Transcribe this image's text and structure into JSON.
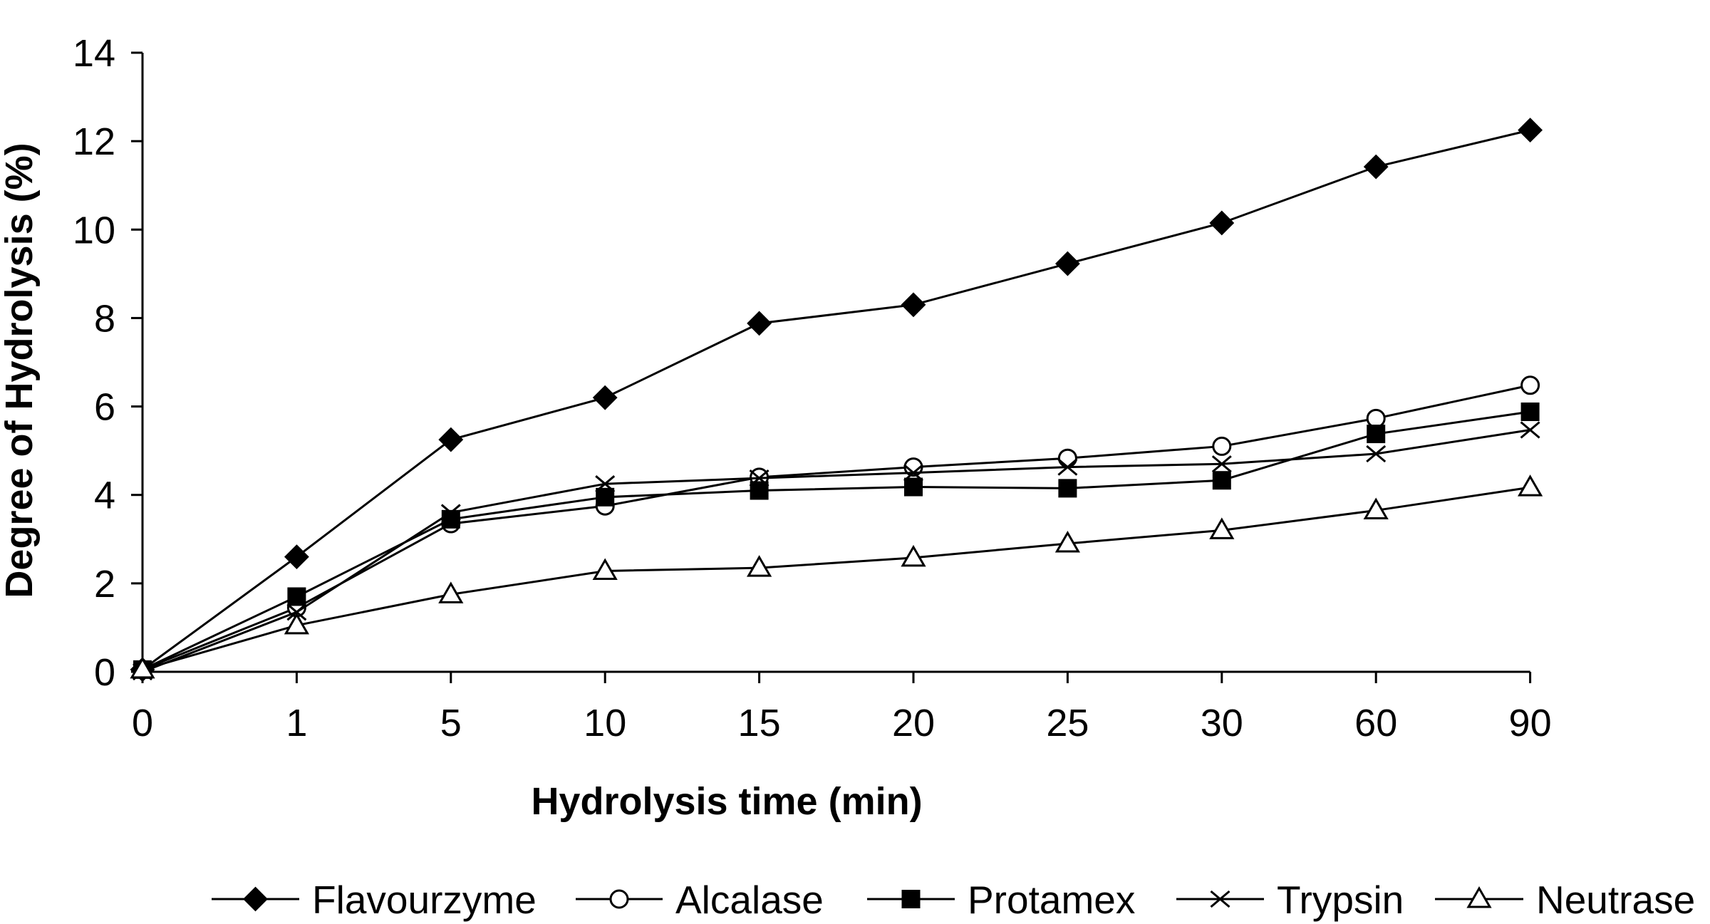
{
  "chart_data": {
    "type": "line",
    "title": "",
    "xlabel": "Hydrolysis time (min)",
    "ylabel": "Degree of Hydrolysis (%)",
    "categories": [
      "0",
      "1",
      "5",
      "10",
      "15",
      "20",
      "25",
      "30",
      "60",
      "90"
    ],
    "ylim": [
      0,
      14
    ],
    "yticks": [
      "0",
      "2",
      "4",
      "6",
      "8",
      "10",
      "12",
      "14"
    ],
    "grid": false,
    "legend": "bottom",
    "series": [
      {
        "name": "Flavourzyme",
        "marker": "filled-diamond",
        "values": [
          0.05,
          2.6,
          5.25,
          6.2,
          7.88,
          8.3,
          9.23,
          10.15,
          11.42,
          12.25
        ]
      },
      {
        "name": "Alcalase",
        "marker": "open-circle",
        "values": [
          0.05,
          1.45,
          3.35,
          3.75,
          4.4,
          4.63,
          4.83,
          5.1,
          5.73,
          6.48
        ]
      },
      {
        "name": "Protamex",
        "marker": "filled-square",
        "values": [
          0.05,
          1.7,
          3.45,
          3.95,
          4.1,
          4.18,
          4.15,
          4.33,
          5.38,
          5.88
        ]
      },
      {
        "name": "Trypsin",
        "marker": "x-cross",
        "values": [
          0.0,
          1.35,
          3.6,
          4.25,
          4.38,
          4.5,
          4.63,
          4.7,
          4.93,
          5.47
        ]
      },
      {
        "name": "Neutrase",
        "marker": "open-triangle",
        "values": [
          0.05,
          1.05,
          1.75,
          2.28,
          2.35,
          2.58,
          2.9,
          3.2,
          3.65,
          4.17
        ]
      }
    ]
  }
}
